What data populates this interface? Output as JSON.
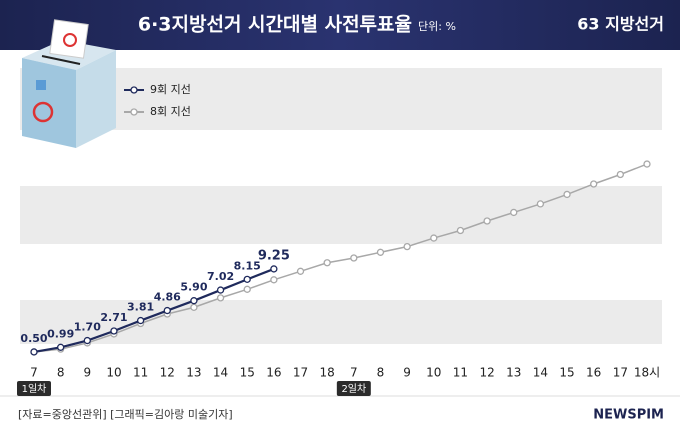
{
  "chart_data": {
    "type": "line",
    "title": "6·3지방선거 시간대별 사전투표율",
    "unit": "단위: %",
    "categories": [
      "7",
      "8",
      "9",
      "10",
      "11",
      "12",
      "13",
      "14",
      "15",
      "16",
      "17",
      "18",
      "7",
      "8",
      "9",
      "10",
      "11",
      "12",
      "13",
      "14",
      "15",
      "16",
      "17",
      "18시"
    ],
    "series": [
      {
        "name": "9회 지선",
        "color": "#1f2a5c",
        "values": [
          0.5,
          0.99,
          1.7,
          2.71,
          3.81,
          4.86,
          5.9,
          7.02,
          8.15,
          9.25,
          null,
          null,
          null,
          null,
          null,
          null,
          null,
          null,
          null,
          null,
          null,
          null,
          null,
          null
        ],
        "value_labels": [
          "0.50",
          "0.99",
          "1.70",
          "2.71",
          "3.81",
          "4.86",
          "5.90",
          "7.02",
          "8.15",
          "9.25",
          null,
          null,
          null,
          null,
          null,
          null,
          null,
          null,
          null,
          null,
          null,
          null,
          null,
          null
        ]
      },
      {
        "name": "8회 지선",
        "color": "#a8a8a8",
        "values": [
          0.5,
          0.8,
          1.45,
          2.4,
          3.5,
          4.5,
          5.2,
          6.2,
          7.1,
          8.1,
          9.0,
          9.9,
          10.4,
          11.0,
          11.6,
          12.5,
          13.3,
          14.3,
          15.2,
          16.1,
          17.1,
          18.2,
          19.2,
          20.3
        ]
      }
    ],
    "ylim": [
      0,
      30
    ],
    "annotations": [
      "1일차",
      "2일차"
    ]
  },
  "source": "[자료=중앙선관위] [그래픽=김아랑 미술기자]",
  "brand": "NEWSPIM",
  "logo": "63 지방선거"
}
